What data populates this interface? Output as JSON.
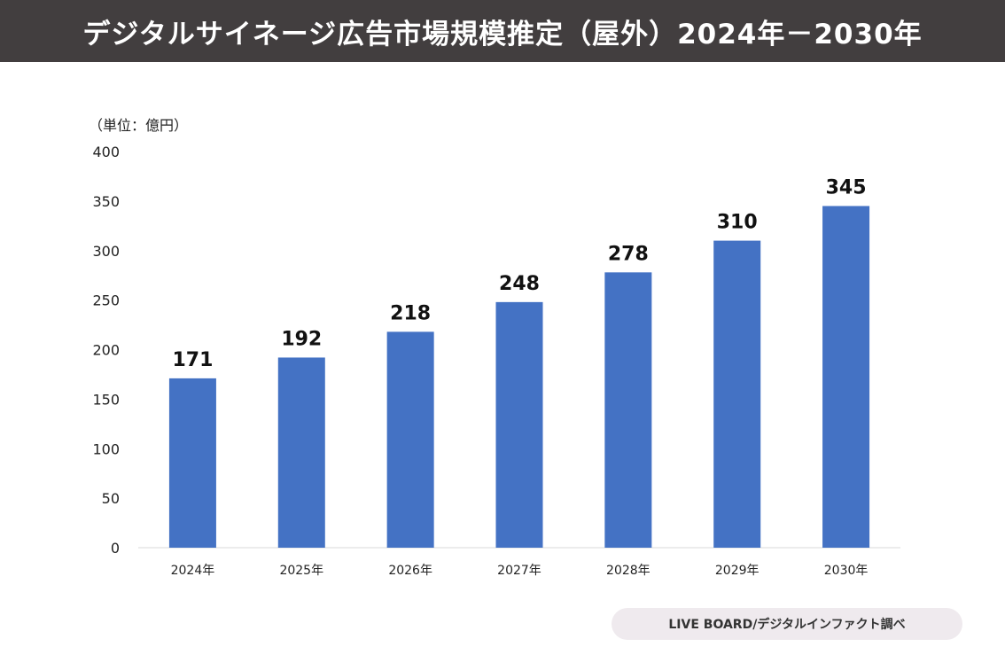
{
  "header": {
    "title": "デジタルサイネージ広告市場規模推定（屋外）2024年－2030年"
  },
  "unit_label": "（単位：億円）",
  "source": "LIVE BOARD/デジタルインファクト調べ",
  "colors": {
    "header_bg": "#423e3f",
    "bar": "#4472c4",
    "badge_bg": "#efeaee"
  },
  "chart_data": {
    "type": "bar",
    "categories": [
      "2024年",
      "2025年",
      "2026年",
      "2027年",
      "2028年",
      "2029年",
      "2030年"
    ],
    "values": [
      171,
      192,
      218,
      248,
      278,
      310,
      345
    ],
    "data_labels": [
      "171",
      "192",
      "218",
      "248",
      "278",
      "310",
      "345"
    ],
    "y_ticks": [
      "0",
      "50",
      "100",
      "150",
      "200",
      "250",
      "300",
      "350",
      "400"
    ],
    "ylim": [
      0,
      400
    ],
    "grid": false,
    "legend": false
  }
}
